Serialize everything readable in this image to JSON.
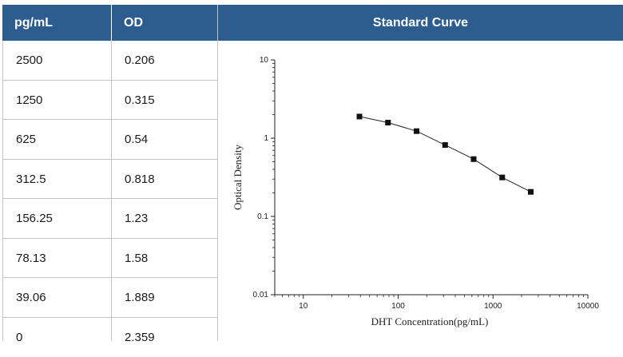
{
  "table": {
    "headers": [
      "pg/mL",
      "OD"
    ],
    "rows": [
      {
        "conc": "2500",
        "od": "0.206"
      },
      {
        "conc": "1250",
        "od": "0.315"
      },
      {
        "conc": "625",
        "od": "0.54"
      },
      {
        "conc": "312.5",
        "od": "0.818"
      },
      {
        "conc": "156.25",
        "od": "1.23"
      },
      {
        "conc": "78.13",
        "od": "1.58"
      },
      {
        "conc": "39.06",
        "od": "1.889"
      },
      {
        "conc": "0",
        "od": "2.359"
      }
    ]
  },
  "colors": {
    "header_bg": "#2d5c8f",
    "header_text": "#ffffff",
    "grid": "#c4c4c4"
  },
  "chart_data": {
    "type": "scatter",
    "title": "Standard Curve",
    "xlabel": "DHT Concentration(pg/mL)",
    "ylabel": "Optical Density",
    "xscale": "log",
    "yscale": "log",
    "xlim": [
      5,
      10000
    ],
    "ylim": [
      0.01,
      10
    ],
    "xticks": [
      10,
      100,
      1000,
      10000
    ],
    "xtick_labels": [
      "10",
      "100",
      "1000",
      "10000"
    ],
    "yticks": [
      0.01,
      0.1,
      1,
      10
    ],
    "ytick_labels": [
      "0.01",
      "0.1",
      "1",
      "10"
    ],
    "grid": false,
    "series": [
      {
        "x": [
          39.06,
          78.13,
          156.25,
          312.5,
          625,
          1250,
          2500
        ],
        "y": [
          1.889,
          1.58,
          1.23,
          0.818,
          0.54,
          0.315,
          0.206
        ]
      }
    ]
  }
}
